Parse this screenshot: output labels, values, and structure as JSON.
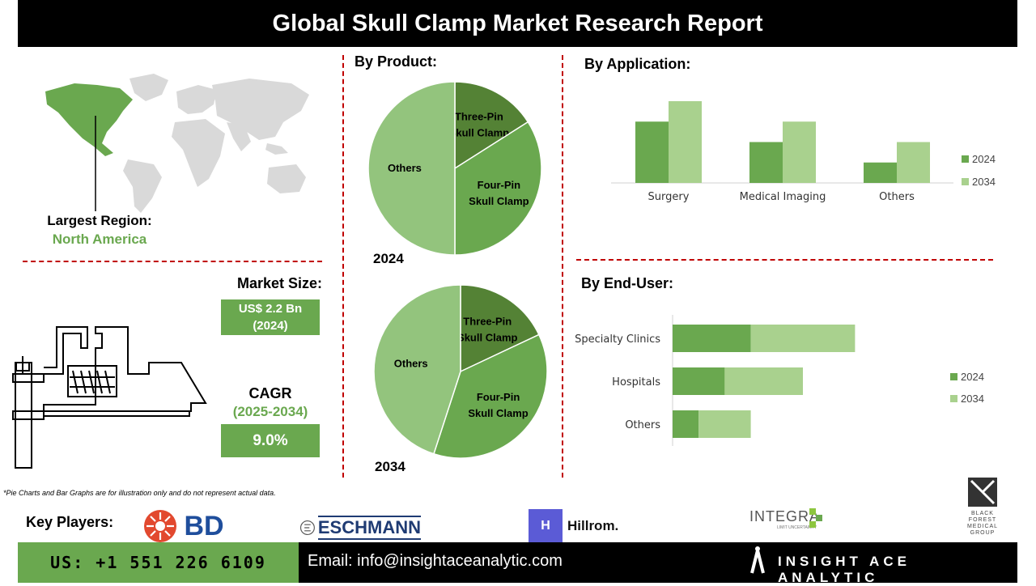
{
  "header": {
    "title": "Global Skull Clamp Market Research Report"
  },
  "region": {
    "label": "Largest Region:",
    "value": "North America"
  },
  "market": {
    "size_label": "Market Size:",
    "size_value_line1": "US$ 2.2 Bn",
    "size_value_line2": "(2024)",
    "cagr_label": "CAGR",
    "cagr_period": "(2025-2034)",
    "cagr_value": "9.0%"
  },
  "sections": {
    "by_product": "By Product:",
    "by_application": "By Application:",
    "by_end_user": "By End-User:"
  },
  "disclaimer": "*Pie Charts and Bar Graphs are for illustration only and do not represent actual data.",
  "key_players": {
    "label": "Key Players:",
    "bd": "BD",
    "eschmann": "ESCHMANN",
    "hillrom": "Hillrom.",
    "integra": "INTEGRA",
    "integra_tagline": "LIMIT UNCERTAINTY",
    "blackforest": [
      "BLACK",
      "FOREST",
      "MEDICAL",
      "GROUP"
    ]
  },
  "footer": {
    "phone": "US: +1 551 226 6109",
    "email": "Email: info@insightaceanalytic.com",
    "brand": "INSIGHT ACE ANALYTIC"
  },
  "colors": {
    "dark_green": "#548235",
    "mid_green": "#6aa84f",
    "light_green": "#93c47d",
    "pale_green": "#a9d18e",
    "accent_red": "#c00000"
  },
  "chart_data": [
    {
      "type": "pie",
      "year_label": "2024",
      "slices": [
        {
          "label": [
            "Three-Pin",
            "Skull Clamp"
          ],
          "value": 16,
          "color": "#548235"
        },
        {
          "label": [
            "Four-Pin",
            "Skull Clamp"
          ],
          "value": 34,
          "color": "#6aa84f"
        },
        {
          "label": [
            "Others"
          ],
          "value": 50,
          "color": "#93c47d"
        }
      ]
    },
    {
      "type": "pie",
      "year_label": "2034",
      "slices": [
        {
          "label": [
            "Three-Pin",
            "Skull Clamp"
          ],
          "value": 18,
          "color": "#548235"
        },
        {
          "label": [
            "Four-Pin",
            "Skull Clamp"
          ],
          "value": 37,
          "color": "#6aa84f"
        },
        {
          "label": [
            "Others"
          ],
          "value": 45,
          "color": "#93c47d"
        }
      ]
    },
    {
      "type": "bar",
      "categories": [
        "Surgery",
        "Medical Imaging",
        "Others"
      ],
      "series": [
        {
          "name": "2024",
          "values": [
            3,
            2,
            1
          ],
          "color": "#6aa84f"
        },
        {
          "name": "2034",
          "values": [
            4,
            3,
            2
          ],
          "color": "#a9d18e"
        }
      ],
      "ylim": [
        0,
        4
      ]
    },
    {
      "type": "bar",
      "orientation": "horizontal-stacked",
      "categories": [
        "Specialty Clinics",
        "Hospitals",
        "Others"
      ],
      "series": [
        {
          "name": "2024",
          "values": [
            3,
            2,
            1
          ],
          "color": "#6aa84f"
        },
        {
          "name": "2034",
          "values": [
            4,
            3,
            2
          ],
          "color": "#a9d18e"
        }
      ],
      "xlim": [
        0,
        7
      ]
    }
  ]
}
